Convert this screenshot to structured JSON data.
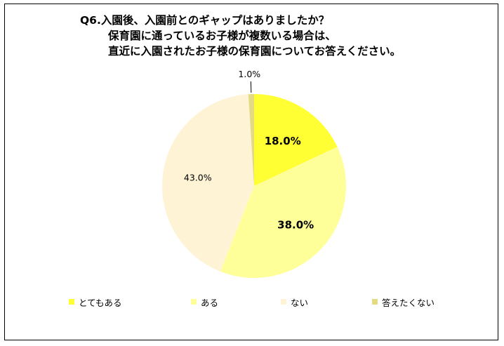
{
  "chart_data": {
    "type": "pie",
    "title_lines": [
      "Q6.入園後、入園前とのギャップはありましたか？",
      "保育園に通っているお子様が複数いる場合は、",
      "直近に入園されたお子様の保育園についてお答えください。"
    ],
    "slices": [
      {
        "name": "とてもある",
        "value": 18.0,
        "label": "18.0%",
        "color": "#ffff33",
        "label_style": "bold"
      },
      {
        "name": "ある",
        "value": 38.0,
        "label": "38.0%",
        "color": "#ffff99",
        "label_style": "bold"
      },
      {
        "name": "ない",
        "value": 43.0,
        "label": "43.0%",
        "color": "#fff3d6",
        "label_style": "normal"
      },
      {
        "name": "答えたくない",
        "value": 1.0,
        "label": "1.0%",
        "color": "#e3db84",
        "label_style": "normal"
      }
    ],
    "start_angle": "12 o'clock",
    "direction": "clockwise",
    "legend_position": "bottom"
  }
}
